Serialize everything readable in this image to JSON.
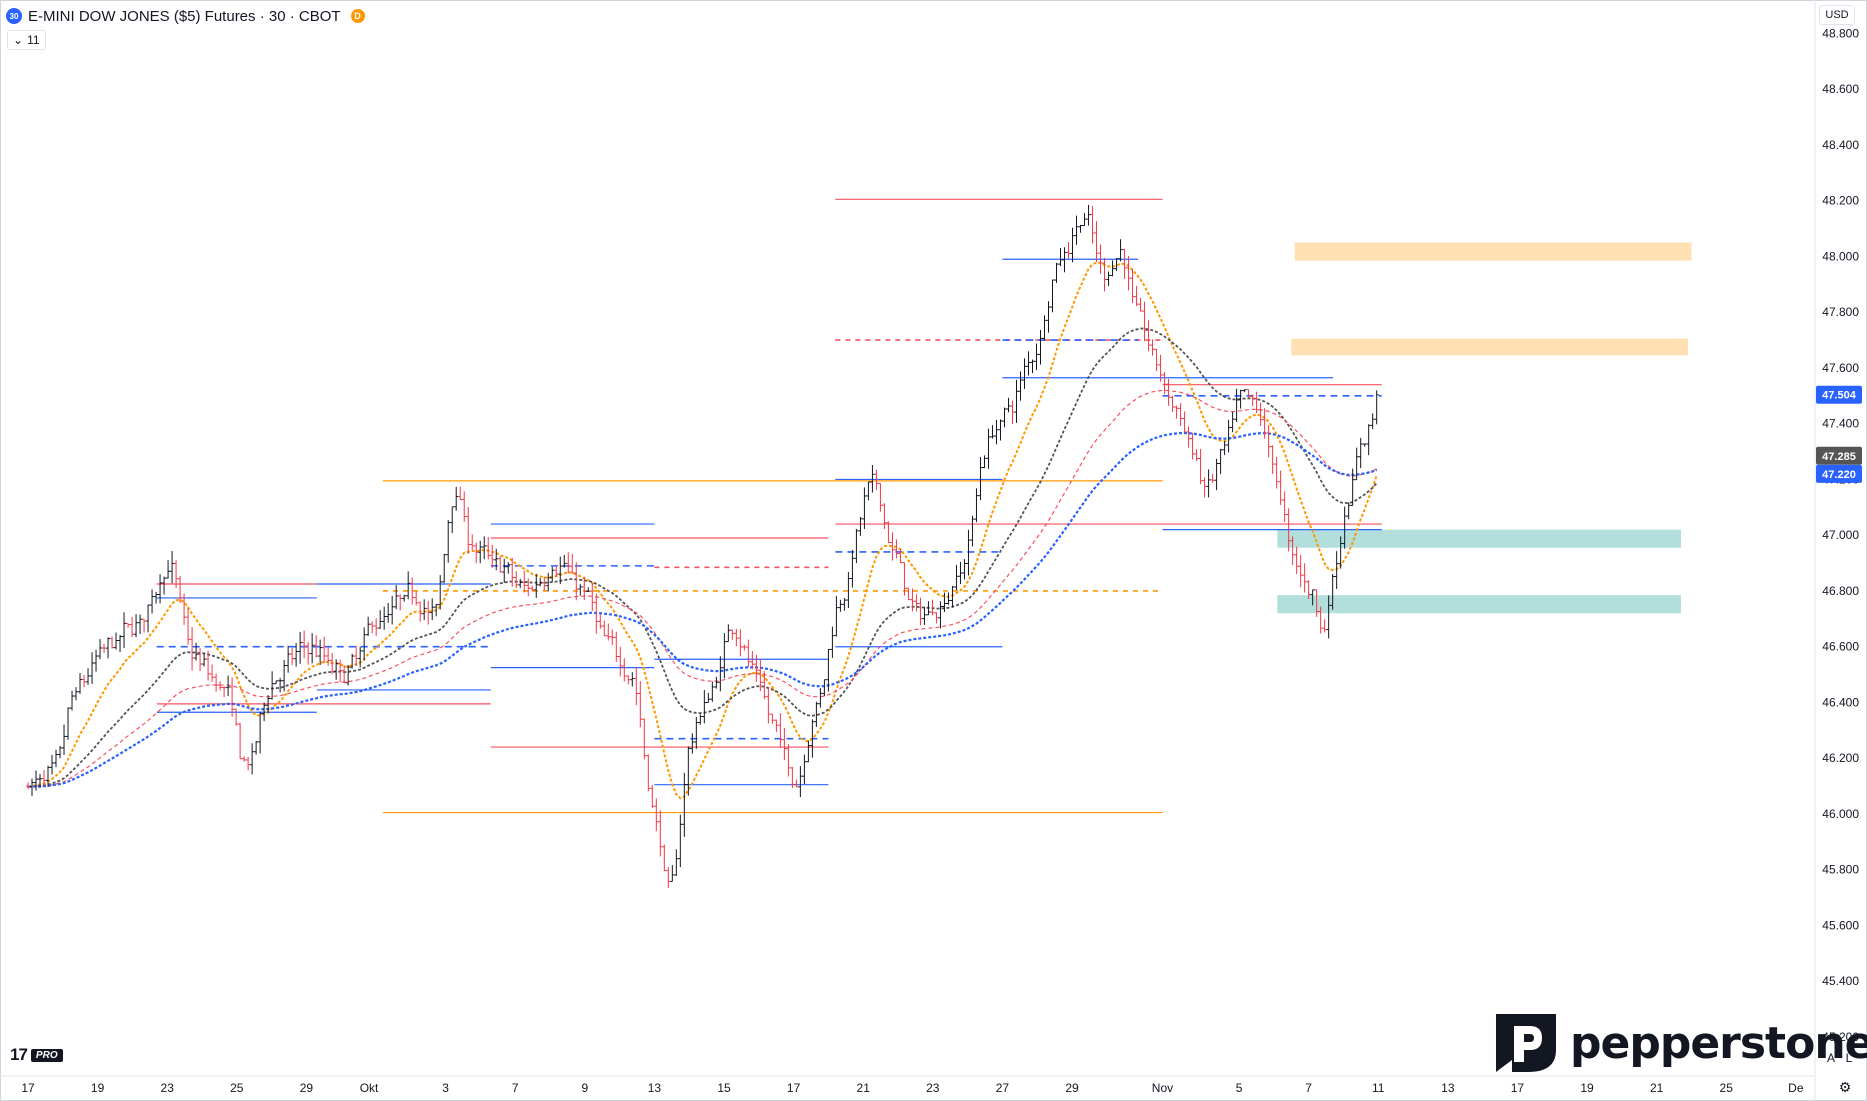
{
  "header": {
    "symbol_badge": "30",
    "title": "E-MINI DOW JONES ($5) Futures · 30 · CBOT",
    "delay_badge": "D",
    "indicator_count": "11",
    "currency": "USD"
  },
  "footer": {
    "tv_logo_text": "17",
    "tv_badge": "PRO",
    "brand": "pepperstone",
    "btn_auto": "A",
    "btn_log": "L"
  },
  "colors": {
    "up": "#131722",
    "down": "#f23645",
    "ema_fast": "#ff9800",
    "ema_mid": "#555555",
    "ema_slow": "#f7525f",
    "ema_long": "#2962ff",
    "supply_zone": "#ffe0b2",
    "demand_zone": "#b2dfdb"
  },
  "chart_data": {
    "type": "candlestick",
    "timeframe": "30",
    "y_axis": {
      "range": [
        45060,
        48920
      ],
      "ticks": [
        {
          "v": 48800,
          "label": "48.800"
        },
        {
          "v": 48600,
          "label": "48.600"
        },
        {
          "v": 48400,
          "label": "48.400"
        },
        {
          "v": 48200,
          "label": "48.200"
        },
        {
          "v": 48000,
          "label": "48.000"
        },
        {
          "v": 47800,
          "label": "47.800"
        },
        {
          "v": 47600,
          "label": "47.600"
        },
        {
          "v": 47400,
          "label": "47.400"
        },
        {
          "v": 47200,
          "label": "47.200"
        },
        {
          "v": 47000,
          "label": "47.000"
        },
        {
          "v": 46800,
          "label": "46.800"
        },
        {
          "v": 46600,
          "label": "46.600"
        },
        {
          "v": 46400,
          "label": "46.400"
        },
        {
          "v": 46200,
          "label": "46.200"
        },
        {
          "v": 46000,
          "label": "46.000"
        },
        {
          "v": 45800,
          "label": "45.800"
        },
        {
          "v": 45600,
          "label": "45.600"
        },
        {
          "v": 45400,
          "label": "45.400"
        },
        {
          "v": 45200,
          "label": "45.200"
        }
      ]
    },
    "x_axis": {
      "ticks": [
        {
          "d": 0,
          "label": "17"
        },
        {
          "d": 2,
          "label": "19"
        },
        {
          "d": 4,
          "label": "23"
        },
        {
          "d": 6,
          "label": "25"
        },
        {
          "d": 8,
          "label": "29"
        },
        {
          "d": 9.8,
          "label": "Okt"
        },
        {
          "d": 12,
          "label": "3"
        },
        {
          "d": 14,
          "label": "7"
        },
        {
          "d": 16,
          "label": "9"
        },
        {
          "d": 18,
          "label": "13"
        },
        {
          "d": 20,
          "label": "15"
        },
        {
          "d": 22,
          "label": "17"
        },
        {
          "d": 24,
          "label": "21"
        },
        {
          "d": 26,
          "label": "23"
        },
        {
          "d": 28,
          "label": "27"
        },
        {
          "d": 30,
          "label": "29"
        },
        {
          "d": 32.6,
          "label": "Nov"
        },
        {
          "d": 34.8,
          "label": "5"
        },
        {
          "d": 36.8,
          "label": "7"
        },
        {
          "d": 38.8,
          "label": "11"
        },
        {
          "d": 40.8,
          "label": "13"
        },
        {
          "d": 42.8,
          "label": "17"
        },
        {
          "d": 44.8,
          "label": "19"
        },
        {
          "d": 46.8,
          "label": "21"
        },
        {
          "d": 48.8,
          "label": "25"
        },
        {
          "d": 50.8,
          "label": "De"
        }
      ]
    },
    "price_anchors": [
      {
        "d": 0,
        "p": 46100
      },
      {
        "d": 0.7,
        "p": 46150
      },
      {
        "d": 1.3,
        "p": 46450
      },
      {
        "d": 2.2,
        "p": 46600
      },
      {
        "d": 3.2,
        "p": 46700
      },
      {
        "d": 4.0,
        "p": 46900
      },
      {
        "d": 4.7,
        "p": 46550
      },
      {
        "d": 5.6,
        "p": 46450
      },
      {
        "d": 6.2,
        "p": 46150
      },
      {
        "d": 7.0,
        "p": 46500
      },
      {
        "d": 8.0,
        "p": 46600
      },
      {
        "d": 9.0,
        "p": 46500
      },
      {
        "d": 10.0,
        "p": 46700
      },
      {
        "d": 11.0,
        "p": 46800
      },
      {
        "d": 11.6,
        "p": 46700
      },
      {
        "d": 12.2,
        "p": 47200
      },
      {
        "d": 12.7,
        "p": 46950
      },
      {
        "d": 13.4,
        "p": 46900
      },
      {
        "d": 14.2,
        "p": 46800
      },
      {
        "d": 15.2,
        "p": 46900
      },
      {
        "d": 15.9,
        "p": 46800
      },
      {
        "d": 16.6,
        "p": 46600
      },
      {
        "d": 17.3,
        "p": 46500
      },
      {
        "d": 17.9,
        "p": 46000
      },
      {
        "d": 18.4,
        "p": 45700
      },
      {
        "d": 19.0,
        "p": 46300
      },
      {
        "d": 19.6,
        "p": 46450
      },
      {
        "d": 20.2,
        "p": 46700
      },
      {
        "d": 20.8,
        "p": 46500
      },
      {
        "d": 21.4,
        "p": 46300
      },
      {
        "d": 22.0,
        "p": 46100
      },
      {
        "d": 22.6,
        "p": 46400
      },
      {
        "d": 23.3,
        "p": 46800
      },
      {
        "d": 24.2,
        "p": 47200
      },
      {
        "d": 24.9,
        "p": 46900
      },
      {
        "d": 25.5,
        "p": 46700
      },
      {
        "d": 26.2,
        "p": 46750
      },
      {
        "d": 26.8,
        "p": 46900
      },
      {
        "d": 27.5,
        "p": 47350
      },
      {
        "d": 28.1,
        "p": 47450
      },
      {
        "d": 28.8,
        "p": 47650
      },
      {
        "d": 29.6,
        "p": 48000
      },
      {
        "d": 30.3,
        "p": 48150
      },
      {
        "d": 30.9,
        "p": 47900
      },
      {
        "d": 31.3,
        "p": 48050
      },
      {
        "d": 31.8,
        "p": 47800
      },
      {
        "d": 32.4,
        "p": 47600
      },
      {
        "d": 32.9,
        "p": 47450
      },
      {
        "d": 33.4,
        "p": 47300
      },
      {
        "d": 33.8,
        "p": 47150
      },
      {
        "d": 34.3,
        "p": 47300
      },
      {
        "d": 34.8,
        "p": 47500
      },
      {
        "d": 35.3,
        "p": 47450
      },
      {
        "d": 35.8,
        "p": 47200
      },
      {
        "d": 36.3,
        "p": 46900
      },
      {
        "d": 36.8,
        "p": 46800
      },
      {
        "d": 37.2,
        "p": 46650
      },
      {
        "d": 37.5,
        "p": 46900
      },
      {
        "d": 37.9,
        "p": 47150
      },
      {
        "d": 38.3,
        "p": 47350
      },
      {
        "d": 38.8,
        "p": 47480
      }
    ],
    "last_price": 47504,
    "price_labels": [
      {
        "v": 47504,
        "label": "47.504",
        "color": "#2962ff"
      },
      {
        "v": 47285,
        "label": "47.285",
        "color": "#555555"
      },
      {
        "v": 47220,
        "label": "47.220",
        "color": "#2962ff"
      }
    ],
    "zones": [
      {
        "d1": 36.4,
        "d2": 47.8,
        "lo": 47985,
        "hi": 48050,
        "color": "#ffe0b2"
      },
      {
        "d1": 36.3,
        "d2": 47.7,
        "lo": 47645,
        "hi": 47705,
        "color": "#ffe0b2"
      },
      {
        "d1": 35.9,
        "d2": 47.5,
        "lo": 46955,
        "hi": 47020,
        "color": "#b2dfdb"
      },
      {
        "d1": 35.9,
        "d2": 47.5,
        "lo": 46720,
        "hi": 46785,
        "color": "#b2dfdb"
      }
    ],
    "levels": [
      {
        "d1": 23.2,
        "d2": 32.6,
        "v": 48205,
        "color": "#f7525f",
        "dash": false
      },
      {
        "d1": 28.0,
        "d2": 31.9,
        "v": 47990,
        "color": "#2962ff",
        "dash": false
      },
      {
        "d1": 23.2,
        "d2": 32.6,
        "v": 47700,
        "color": "#f7525f",
        "dash": true
      },
      {
        "d1": 28.0,
        "d2": 31.9,
        "v": 47700,
        "color": "#2962ff",
        "dash": true
      },
      {
        "d1": 28.0,
        "d2": 37.5,
        "v": 47565,
        "color": "#2962ff",
        "dash": false
      },
      {
        "d1": 32.6,
        "d2": 38.9,
        "v": 47540,
        "color": "#f7525f",
        "dash": false
      },
      {
        "d1": 32.6,
        "d2": 38.9,
        "v": 47500,
        "color": "#2962ff",
        "dash": true
      },
      {
        "d1": 10.2,
        "d2": 32.6,
        "v": 47195,
        "color": "#ff9800",
        "dash": false
      },
      {
        "d1": 23.2,
        "d2": 28.0,
        "v": 47200,
        "color": "#2962ff",
        "dash": false
      },
      {
        "d1": 13.3,
        "d2": 18.0,
        "v": 47040,
        "color": "#2962ff",
        "dash": false
      },
      {
        "d1": 23.2,
        "d2": 38.9,
        "v": 47040,
        "color": "#f7525f",
        "dash": false
      },
      {
        "d1": 32.6,
        "d2": 38.9,
        "v": 47020,
        "color": "#2962ff",
        "dash": false
      },
      {
        "d1": 13.3,
        "d2": 23.0,
        "v": 46990,
        "color": "#f7525f",
        "dash": false
      },
      {
        "d1": 23.2,
        "d2": 28.0,
        "v": 46940,
        "color": "#2962ff",
        "dash": true
      },
      {
        "d1": 13.3,
        "d2": 18.0,
        "v": 46890,
        "color": "#2962ff",
        "dash": true
      },
      {
        "d1": 18.0,
        "d2": 23.0,
        "v": 46885,
        "color": "#f7525f",
        "dash": true
      },
      {
        "d1": 3.7,
        "d2": 8.3,
        "v": 46825,
        "color": "#f7525f",
        "dash": false
      },
      {
        "d1": 8.3,
        "d2": 13.3,
        "v": 46825,
        "color": "#2962ff",
        "dash": false
      },
      {
        "d1": 10.2,
        "d2": 32.6,
        "v": 46800,
        "color": "#ff9800",
        "dash": true
      },
      {
        "d1": 3.7,
        "d2": 8.3,
        "v": 46775,
        "color": "#2962ff",
        "dash": false
      },
      {
        "d1": 3.7,
        "d2": 13.3,
        "v": 46600,
        "color": "#2962ff",
        "dash": true
      },
      {
        "d1": 23.2,
        "d2": 28.0,
        "v": 46600,
        "color": "#2962ff",
        "dash": false
      },
      {
        "d1": 18.0,
        "d2": 23.0,
        "v": 46555,
        "color": "#2962ff",
        "dash": false
      },
      {
        "d1": 13.3,
        "d2": 18.0,
        "v": 46525,
        "color": "#2962ff",
        "dash": false
      },
      {
        "d1": 8.3,
        "d2": 13.3,
        "v": 46445,
        "color": "#2962ff",
        "dash": false
      },
      {
        "d1": 3.7,
        "d2": 13.3,
        "v": 46395,
        "color": "#f7525f",
        "dash": false
      },
      {
        "d1": 3.7,
        "d2": 8.3,
        "v": 46365,
        "color": "#2962ff",
        "dash": false
      },
      {
        "d1": 18.0,
        "d2": 23.0,
        "v": 46270,
        "color": "#2962ff",
        "dash": true
      },
      {
        "d1": 13.3,
        "d2": 23.0,
        "v": 46240,
        "color": "#f7525f",
        "dash": false
      },
      {
        "d1": 18.0,
        "d2": 23.0,
        "v": 46105,
        "color": "#2962ff",
        "dash": false
      },
      {
        "d1": 10.2,
        "d2": 32.6,
        "v": 46005,
        "color": "#ff9800",
        "dash": false
      }
    ]
  }
}
